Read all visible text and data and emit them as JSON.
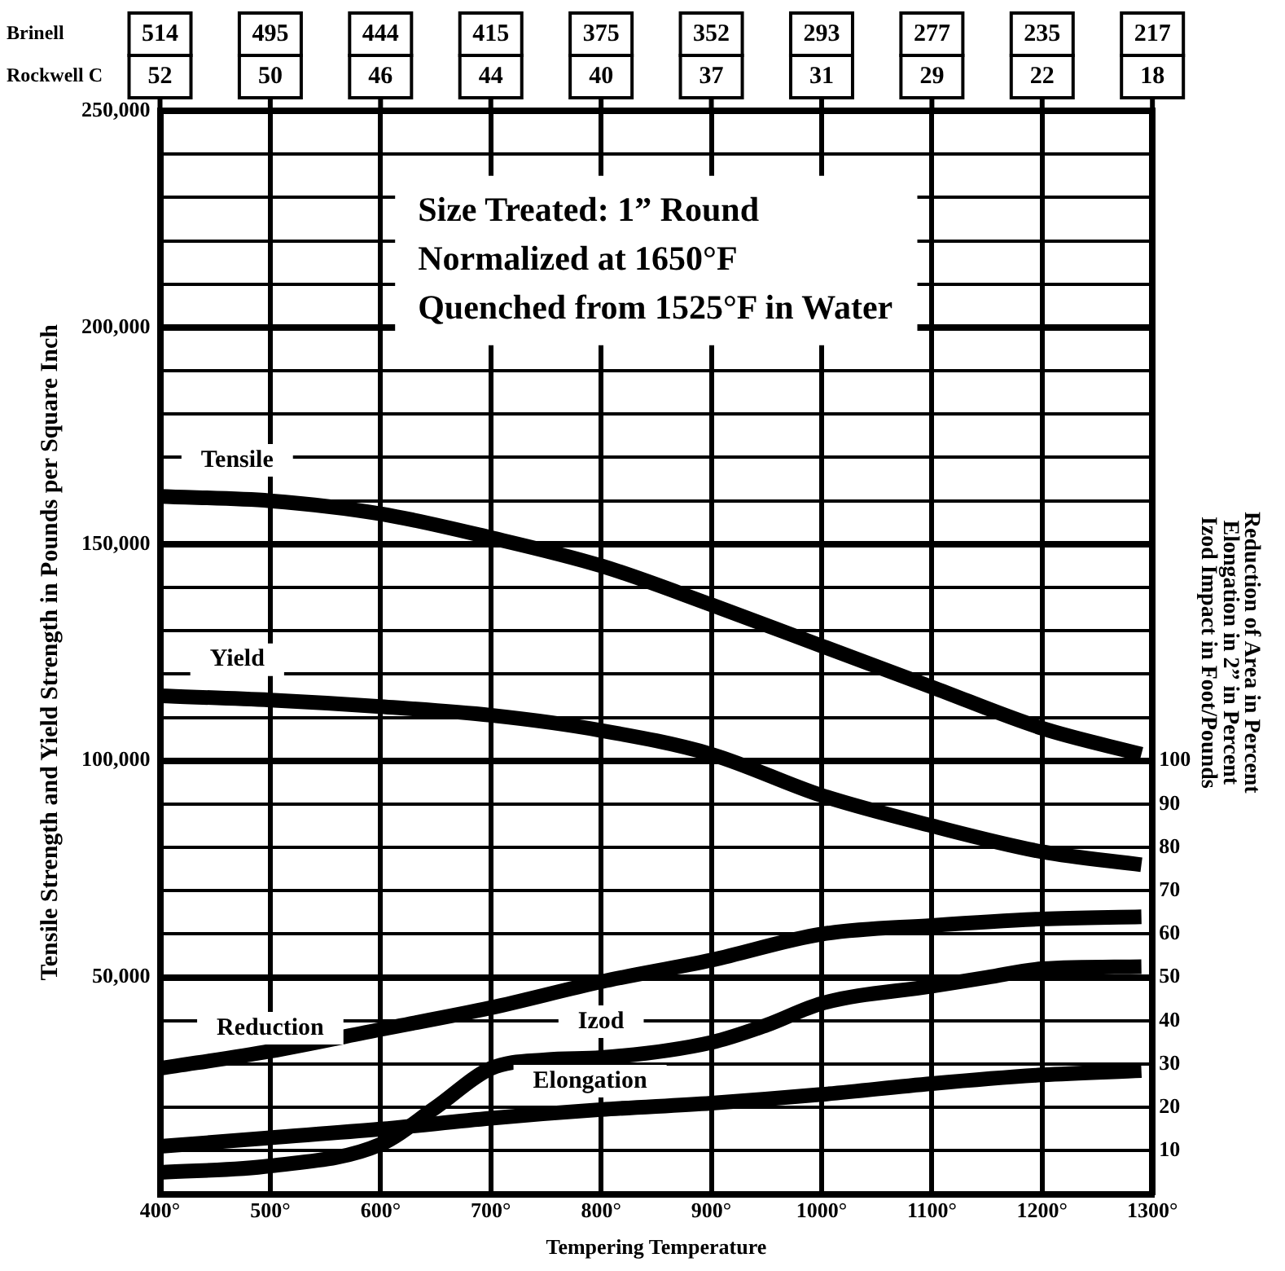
{
  "chart_data": {
    "type": "line",
    "xlabel": "Tempering Temperature",
    "ylabel": "Tensile Strength and Yield Strength in Pounds per Square Inch",
    "y2label": "Reduction of Area in Percent\nElongation in 2” in Percent\nIzod Impact in Foot/Pounds",
    "annotations": [
      "Brinell",
      "514",
      "495",
      "444",
      "415",
      "375",
      "352",
      "293",
      "277",
      "235",
      "217",
      "Rockwell C",
      "52",
      "50",
      "46",
      "44",
      "40",
      "37",
      "31",
      "29",
      "22",
      "18",
      "Size Treated: 1” Round",
      "Normalized at 1650°F",
      "Quenched from 1525°F in Water"
    ],
    "x": [
      400,
      500,
      600,
      700,
      800,
      900,
      1000,
      1100,
      1200,
      1290
    ],
    "series": [
      {
        "name": "Tensile",
        "color": "#000000",
        "values": [
          161000,
          160000,
          157000,
          151500,
          145000,
          136000,
          126500,
          117000,
          107500,
          101500
        ]
      },
      {
        "name": "Yield",
        "color": "#000000",
        "values": [
          115000,
          114000,
          112500,
          110500,
          107000,
          101500,
          92000,
          85000,
          79000,
          76000
        ]
      },
      {
        "name": "Reduction",
        "color": "#000000",
        "axis": "y2",
        "values": [
          29,
          33,
          38,
          43,
          49,
          54,
          60,
          62,
          63.5,
          64
        ]
      },
      {
        "name": "Izod",
        "color": "#000000",
        "axis": "y2",
        "x": [
          400,
          500,
          600,
          650,
          700,
          750,
          800,
          900,
          950,
          1000,
          1100,
          1150,
          1200,
          1290
        ],
        "values": [
          5,
          6.5,
          11.5,
          20,
          29,
          31,
          31.5,
          35,
          39,
          44,
          48,
          50,
          52,
          52.5
        ]
      },
      {
        "name": "Elongation",
        "color": "#000000",
        "axis": "y2",
        "values": [
          11,
          13,
          15,
          17.5,
          19.5,
          21,
          23,
          25.5,
          27.5,
          28.5
        ]
      }
    ],
    "xlim": [
      400,
      1300
    ],
    "xticks": [
      {
        "value": 400,
        "label": "400°"
      },
      {
        "value": 500,
        "label": "500°"
      },
      {
        "value": 600,
        "label": "600°"
      },
      {
        "value": 700,
        "label": "700°"
      },
      {
        "value": 800,
        "label": "800°"
      },
      {
        "value": 900,
        "label": "900°"
      },
      {
        "value": 1000,
        "label": "1000°"
      },
      {
        "value": 1100,
        "label": "1100°"
      },
      {
        "value": 1200,
        "label": "1200°"
      },
      {
        "value": 1300,
        "label": "1300°"
      }
    ],
    "ylim": [
      0,
      250000
    ],
    "yticks": [
      {
        "value": 0,
        "label": null
      },
      {
        "value": 10000,
        "label": null
      },
      {
        "value": 20000,
        "label": null
      },
      {
        "value": 30000,
        "label": null
      },
      {
        "value": 40000,
        "label": null
      },
      {
        "value": 50000,
        "label": "50,000"
      },
      {
        "value": 60000,
        "label": null
      },
      {
        "value": 70000,
        "label": null
      },
      {
        "value": 80000,
        "label": null
      },
      {
        "value": 90000,
        "label": null
      },
      {
        "value": 100000,
        "label": "100,000"
      },
      {
        "value": 110000,
        "label": null
      },
      {
        "value": 120000,
        "label": null
      },
      {
        "value": 130000,
        "label": null
      },
      {
        "value": 140000,
        "label": null
      },
      {
        "value": 150000,
        "label": "150,000"
      },
      {
        "value": 160000,
        "label": null
      },
      {
        "value": 170000,
        "label": null
      },
      {
        "value": 180000,
        "label": null
      },
      {
        "value": 190000,
        "label": null
      },
      {
        "value": 200000,
        "label": "200,000"
      },
      {
        "value": 210000,
        "label": null
      },
      {
        "value": 220000,
        "label": null
      },
      {
        "value": 230000,
        "label": null
      },
      {
        "value": 240000,
        "label": null
      },
      {
        "value": 250000,
        "label": "250,000"
      }
    ],
    "y2lim": [
      0,
      250
    ],
    "y2ticks": [
      10,
      20,
      30,
      40,
      50,
      60,
      70,
      80,
      90,
      100
    ],
    "grid": true,
    "legend": false
  }
}
